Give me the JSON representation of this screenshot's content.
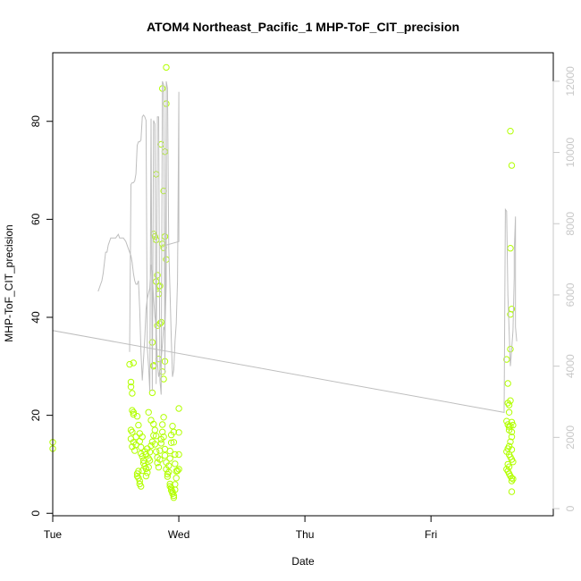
{
  "chart_data": {
    "type": "scatter",
    "title": "ATOM4 Northeast_Pacific_1 MHP-ToF_CIT_precision",
    "xlabel": "Date",
    "ylabel": "MHP-ToF_CIT_precision",
    "x_axis": {
      "unit": "days",
      "range": [
        0,
        3.97
      ],
      "ticks": [
        {
          "value": 0,
          "label": "Tue"
        },
        {
          "value": 1,
          "label": "Wed"
        },
        {
          "value": 2,
          "label": "Thu"
        },
        {
          "value": 3,
          "label": "Fri"
        }
      ]
    },
    "y_axis": {
      "range": [
        -0.5,
        94
      ],
      "ticks": [
        0,
        20,
        40,
        60,
        80
      ]
    },
    "y2_axis": {
      "range": [
        -200,
        12800
      ],
      "ticks": [
        0,
        2000,
        4000,
        6000,
        8000,
        10000,
        12000
      ],
      "color": "#c8c8c8"
    },
    "grid": false,
    "legend": "none",
    "colors": {
      "points": "#b2ff00",
      "line": "#bebebe"
    },
    "series": [
      {
        "type": "points",
        "axis": "left",
        "points": [
          [
            0.0,
            14.5
          ],
          [
            0.0,
            13.2
          ],
          [
            0.61,
            30.4
          ],
          [
            0.62,
            26.8
          ],
          [
            0.62,
            25.8
          ],
          [
            0.64,
            30.7
          ],
          [
            0.63,
            24.5
          ],
          [
            0.63,
            21.0
          ],
          [
            0.64,
            20.6
          ],
          [
            0.64,
            20.2
          ],
          [
            0.62,
            17.0
          ],
          [
            0.63,
            16.6
          ],
          [
            0.62,
            15.2
          ],
          [
            0.64,
            14.5
          ],
          [
            0.63,
            13.6
          ],
          [
            0.65,
            12.8
          ],
          [
            0.66,
            15.6
          ],
          [
            0.66,
            14.0
          ],
          [
            0.67,
            19.8
          ],
          [
            0.68,
            18.0
          ],
          [
            0.69,
            16.3
          ],
          [
            0.69,
            14.7
          ],
          [
            0.7,
            13.5
          ],
          [
            0.7,
            12.2
          ],
          [
            0.71,
            11.6
          ],
          [
            0.72,
            10.8
          ],
          [
            0.71,
            15.6
          ],
          [
            0.73,
            12.6
          ],
          [
            0.74,
            12.0
          ],
          [
            0.75,
            13.2
          ],
          [
            0.76,
            11.2
          ],
          [
            0.76,
            9.4
          ],
          [
            0.75,
            8.3
          ],
          [
            0.74,
            7.6
          ],
          [
            0.68,
            8.6
          ],
          [
            0.67,
            8.1
          ],
          [
            0.67,
            7.6
          ],
          [
            0.68,
            7.2
          ],
          [
            0.69,
            6.6
          ],
          [
            0.69,
            6.0
          ],
          [
            0.7,
            5.5
          ],
          [
            0.71,
            8.7
          ],
          [
            0.72,
            10.2
          ],
          [
            0.73,
            9.6
          ],
          [
            0.74,
            9.1
          ],
          [
            0.77,
            10.8
          ],
          [
            0.77,
            12.5
          ],
          [
            0.78,
            13.8
          ],
          [
            0.79,
            14.6
          ],
          [
            0.8,
            15.9
          ],
          [
            0.76,
            20.6
          ],
          [
            0.78,
            19.0
          ],
          [
            0.79,
            24.6
          ],
          [
            0.79,
            34.9
          ],
          [
            0.8,
            30.2
          ],
          [
            0.8,
            18.2
          ],
          [
            0.81,
            17.0
          ],
          [
            0.82,
            15.8
          ],
          [
            0.81,
            14.1
          ],
          [
            0.82,
            12.6
          ],
          [
            0.83,
            11.4
          ],
          [
            0.83,
            10.3
          ],
          [
            0.84,
            9.4
          ],
          [
            0.85,
            11.0
          ],
          [
            0.85,
            12.8
          ],
          [
            0.86,
            14.3
          ],
          [
            0.86,
            15.1
          ],
          [
            0.87,
            16.6
          ],
          [
            0.87,
            18.1
          ],
          [
            0.88,
            19.6
          ],
          [
            0.88,
            15.6
          ],
          [
            0.89,
            13.1
          ],
          [
            0.89,
            11.8
          ],
          [
            0.9,
            10.4
          ],
          [
            0.9,
            9.0
          ],
          [
            0.91,
            8.0
          ],
          [
            0.91,
            7.5
          ],
          [
            0.92,
            8.4
          ],
          [
            0.92,
            9.7
          ],
          [
            0.93,
            11.2
          ],
          [
            0.93,
            12.7
          ],
          [
            0.94,
            14.4
          ],
          [
            0.94,
            16.0
          ],
          [
            0.95,
            17.8
          ],
          [
            0.96,
            16.6
          ],
          [
            0.96,
            14.5
          ],
          [
            0.97,
            12.0
          ],
          [
            0.97,
            10.1
          ],
          [
            0.98,
            8.6
          ],
          [
            0.98,
            7.2
          ],
          [
            0.99,
            8.7
          ],
          [
            1.0,
            21.4
          ],
          [
            1.0,
            16.5
          ],
          [
            1.0,
            12.0
          ],
          [
            1.0,
            9.0
          ],
          [
            0.93,
            6.0
          ],
          [
            0.93,
            5.5
          ],
          [
            0.94,
            5.2
          ],
          [
            0.94,
            4.7
          ],
          [
            0.95,
            4.4
          ],
          [
            0.95,
            4.0
          ],
          [
            0.96,
            3.6
          ],
          [
            0.96,
            3.2
          ],
          [
            0.97,
            4.8
          ],
          [
            0.97,
            5.9
          ],
          [
            0.8,
            57.0
          ],
          [
            0.81,
            56.5
          ],
          [
            0.82,
            47.3
          ],
          [
            0.83,
            48.6
          ],
          [
            0.84,
            46.3
          ],
          [
            0.84,
            44.8
          ],
          [
            0.85,
            46.4
          ],
          [
            0.85,
            38.7
          ],
          [
            0.86,
            39.0
          ],
          [
            0.83,
            38.3
          ],
          [
            0.82,
            55.8
          ],
          [
            0.87,
            55.0
          ],
          [
            0.88,
            54.2
          ],
          [
            0.89,
            56.5
          ],
          [
            0.9,
            51.8
          ],
          [
            0.88,
            65.8
          ],
          [
            0.86,
            75.3
          ],
          [
            0.89,
            73.8
          ],
          [
            0.82,
            69.2
          ],
          [
            0.9,
            83.6
          ],
          [
            0.87,
            86.7
          ],
          [
            0.9,
            91.0
          ],
          [
            0.89,
            31.0
          ],
          [
            0.87,
            28.9
          ],
          [
            0.84,
            31.5
          ],
          [
            0.88,
            27.4
          ],
          [
            0.8,
            30.0
          ],
          [
            3.6,
            31.4
          ],
          [
            3.61,
            26.5
          ],
          [
            3.61,
            22.5
          ],
          [
            3.62,
            20.6
          ],
          [
            3.6,
            18.8
          ],
          [
            3.61,
            18.1
          ],
          [
            3.62,
            17.6
          ],
          [
            3.62,
            17.0
          ],
          [
            3.63,
            17.8
          ],
          [
            3.64,
            16.6
          ],
          [
            3.64,
            15.6
          ],
          [
            3.63,
            14.6
          ],
          [
            3.62,
            13.7
          ],
          [
            3.61,
            13.2
          ],
          [
            3.6,
            12.6
          ],
          [
            3.62,
            12.0
          ],
          [
            3.63,
            11.5
          ],
          [
            3.64,
            11.0
          ],
          [
            3.65,
            10.5
          ],
          [
            3.61,
            10.0
          ],
          [
            3.62,
            9.5
          ],
          [
            3.6,
            9.0
          ],
          [
            3.61,
            8.6
          ],
          [
            3.62,
            8.1
          ],
          [
            3.63,
            7.6
          ],
          [
            3.64,
            7.2
          ],
          [
            3.65,
            7.0
          ],
          [
            3.64,
            6.6
          ],
          [
            3.63,
            23.0
          ],
          [
            3.62,
            22.1
          ],
          [
            3.64,
            18.6
          ],
          [
            3.65,
            18.0
          ],
          [
            3.64,
            13.0
          ],
          [
            3.64,
            4.4
          ],
          [
            3.63,
            33.5
          ],
          [
            3.63,
            40.6
          ],
          [
            3.64,
            41.7
          ],
          [
            3.63,
            54.1
          ],
          [
            3.64,
            71.0
          ],
          [
            3.63,
            78.0
          ]
        ]
      },
      {
        "type": "line",
        "axis": "right",
        "points": [
          [
            0.0,
            6050
          ],
          [
            0.0,
            5000
          ],
          [
            3.58,
            2700
          ],
          [
            3.59,
            8400
          ],
          [
            3.6,
            8350
          ],
          [
            3.61,
            6000
          ],
          [
            3.62,
            5000
          ],
          [
            3.63,
            4000
          ],
          [
            3.64,
            4500
          ],
          [
            3.65,
            5000
          ],
          [
            3.66,
            6500
          ],
          [
            3.66,
            7200
          ],
          [
            3.67,
            8200
          ],
          [
            3.67,
            5100
          ],
          [
            3.68,
            4700
          ]
        ]
      },
      {
        "type": "line",
        "axis": "right",
        "points": [
          [
            0.61,
            4400
          ],
          [
            0.62,
            9100
          ],
          [
            0.63,
            9150
          ],
          [
            0.64,
            9150
          ],
          [
            0.65,
            9200
          ],
          [
            0.66,
            9400
          ],
          [
            0.67,
            10200
          ],
          [
            0.68,
            10300
          ],
          [
            0.69,
            10300
          ],
          [
            0.7,
            10350
          ],
          [
            0.71,
            11000
          ],
          [
            0.72,
            11050
          ],
          [
            0.73,
            11000
          ],
          [
            0.74,
            10900
          ],
          [
            0.75,
            4500
          ],
          [
            0.76,
            4000
          ],
          [
            0.77,
            3300
          ],
          [
            0.78,
            10950
          ],
          [
            0.79,
            3300
          ],
          [
            0.8,
            10900
          ],
          [
            0.81,
            10800
          ],
          [
            0.82,
            3500
          ],
          [
            0.83,
            11000
          ],
          [
            0.84,
            11000
          ],
          [
            0.85,
            3600
          ],
          [
            0.86,
            3200
          ],
          [
            0.87,
            12000
          ],
          [
            0.88,
            11900
          ],
          [
            0.89,
            3800
          ],
          [
            0.9,
            11750
          ],
          [
            0.9,
            7400
          ],
          [
            1.0,
            7500
          ],
          [
            1.0,
            11700
          ],
          [
            0.99,
            6400
          ],
          [
            0.98,
            5200
          ],
          [
            0.97,
            4700
          ],
          [
            0.96,
            3900
          ],
          [
            0.95,
            3700
          ],
          [
            0.94,
            4800
          ],
          [
            0.93,
            6100
          ],
          [
            0.92,
            7300
          ],
          [
            0.91,
            11800
          ],
          [
            0.9,
            12000
          ],
          [
            0.9,
            6300
          ],
          [
            0.89,
            5000
          ],
          [
            0.88,
            5100
          ],
          [
            0.87,
            4600
          ],
          [
            0.86,
            4200
          ],
          [
            0.85,
            3900
          ],
          [
            0.84,
            3700
          ],
          [
            0.83,
            4100
          ],
          [
            0.82,
            5100
          ],
          [
            0.81,
            5400
          ],
          [
            0.8,
            5900
          ],
          [
            0.79,
            6600
          ],
          [
            0.78,
            6850
          ],
          [
            0.77,
            6200
          ],
          [
            0.76,
            6050
          ],
          [
            0.75,
            5900
          ],
          [
            0.74,
            5600
          ],
          [
            0.73,
            4800
          ],
          [
            0.72,
            4200
          ],
          [
            0.71,
            3600
          ],
          [
            0.7,
            4400
          ],
          [
            0.69,
            5600
          ],
          [
            0.68,
            6400
          ],
          [
            0.67,
            6300
          ],
          [
            0.66,
            6300
          ],
          [
            0.65,
            6400
          ],
          [
            0.64,
            6600
          ],
          [
            0.63,
            6900
          ],
          [
            0.62,
            7100
          ],
          [
            0.61,
            7200
          ],
          [
            0.6,
            7300
          ],
          [
            0.59,
            7400
          ],
          [
            0.58,
            7500
          ],
          [
            0.57,
            7550
          ],
          [
            0.56,
            7600
          ],
          [
            0.55,
            7600
          ],
          [
            0.54,
            7600
          ],
          [
            0.53,
            7600
          ],
          [
            0.52,
            7700
          ],
          [
            0.51,
            7650
          ],
          [
            0.5,
            7600
          ],
          [
            0.49,
            7600
          ],
          [
            0.48,
            7600
          ],
          [
            0.47,
            7600
          ],
          [
            0.46,
            7600
          ],
          [
            0.45,
            7500
          ],
          [
            0.44,
            7400
          ],
          [
            0.43,
            7200
          ],
          [
            0.42,
            7200
          ],
          [
            0.41,
            6900
          ],
          [
            0.4,
            6600
          ],
          [
            0.39,
            6400
          ],
          [
            0.38,
            6300
          ],
          [
            0.37,
            6200
          ],
          [
            0.36,
            6100
          ]
        ]
      }
    ]
  }
}
